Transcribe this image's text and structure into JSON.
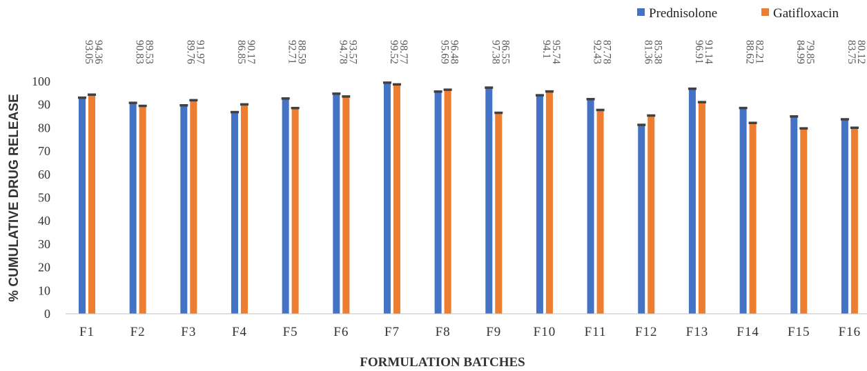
{
  "chart_data": {
    "type": "bar",
    "title": "",
    "xlabel": "FORMULATION BATCHES",
    "ylabel": "% CUMULATIVE DRUG RELEASE",
    "ylim": [
      0,
      100
    ],
    "yticks": [
      0,
      10,
      20,
      30,
      40,
      50,
      60,
      70,
      80,
      90,
      100
    ],
    "grid": false,
    "legend_position": "top-right",
    "categories": [
      "F1",
      "F2",
      "F3",
      "F4",
      "F5",
      "F6",
      "F7",
      "F8",
      "F9",
      "F10",
      "F11",
      "F12",
      "F13",
      "F14",
      "F15",
      "F16"
    ],
    "series": [
      {
        "name": "Prednisolone",
        "color": "#4472C4",
        "values": [
          93.05,
          90.83,
          89.76,
          86.85,
          92.71,
          94.78,
          99.52,
          95.69,
          97.38,
          94.1,
          92.43,
          81.36,
          96.91,
          88.62,
          84.99,
          83.75
        ]
      },
      {
        "name": "Gatifloxacin",
        "color": "#ED7D31",
        "values": [
          94.36,
          89.53,
          91.97,
          90.17,
          88.59,
          93.57,
          98.77,
          96.48,
          86.55,
          95.74,
          87.78,
          85.38,
          91.14,
          82.21,
          79.85,
          80.12
        ]
      }
    ],
    "data_labels": [
      [
        "93.05",
        "90.83",
        "89.76",
        "86.85",
        "92.71",
        "94.78",
        "99.52",
        "95.69",
        "97.38",
        "94.1",
        "92.43",
        "81.36",
        "96.91",
        "88.62",
        "84.99",
        "83.75"
      ],
      [
        "94.36",
        "89.53",
        "91.97",
        "90.17",
        "88.59",
        "93.57",
        "98.77",
        "96.48",
        "86.55",
        "95.74",
        "87.78",
        "85.38",
        "91.14",
        "82.21",
        "79.85",
        "80.12"
      ]
    ],
    "error_bar_color": "#404040"
  }
}
